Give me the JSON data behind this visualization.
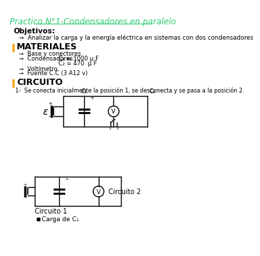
{
  "title": "Practico N°1-Condensadores en paralelo",
  "title_color": "#2ecc71",
  "bg_color": "#ffffff",
  "section_bar_color": "#f5a623",
  "objetivos_label": "Objetivos:",
  "objetivos_text": "→  Analizar la carga y la energía eléctrica en sistemas con dos condensadores",
  "materiales_title": "MATERIALES",
  "mat1": "→  Base y conectores",
  "mat2": "→  Condensadores:",
  "mat3": "C₁ = 1000 μ F",
  "mat4": "C₂ = 470  μ F",
  "mat5": "→  Voltímetro",
  "mat6": "→  Fuente C.C (3 A12 v)",
  "circuito_title": "CIRCUITO",
  "circuito_text": "1-  Se conecta inicialmente la posición 1, se desconecta y se pasa a la posición 2.",
  "circuito1_label": "Circuito 1",
  "circuito2_label": "Circuito 2",
  "carga_label": "Carga de C₁",
  "E_label": "ε",
  "plus": "+",
  "minus": "−",
  "C1_label": "C₁",
  "C2_label": "C₂",
  "V_label": "V"
}
